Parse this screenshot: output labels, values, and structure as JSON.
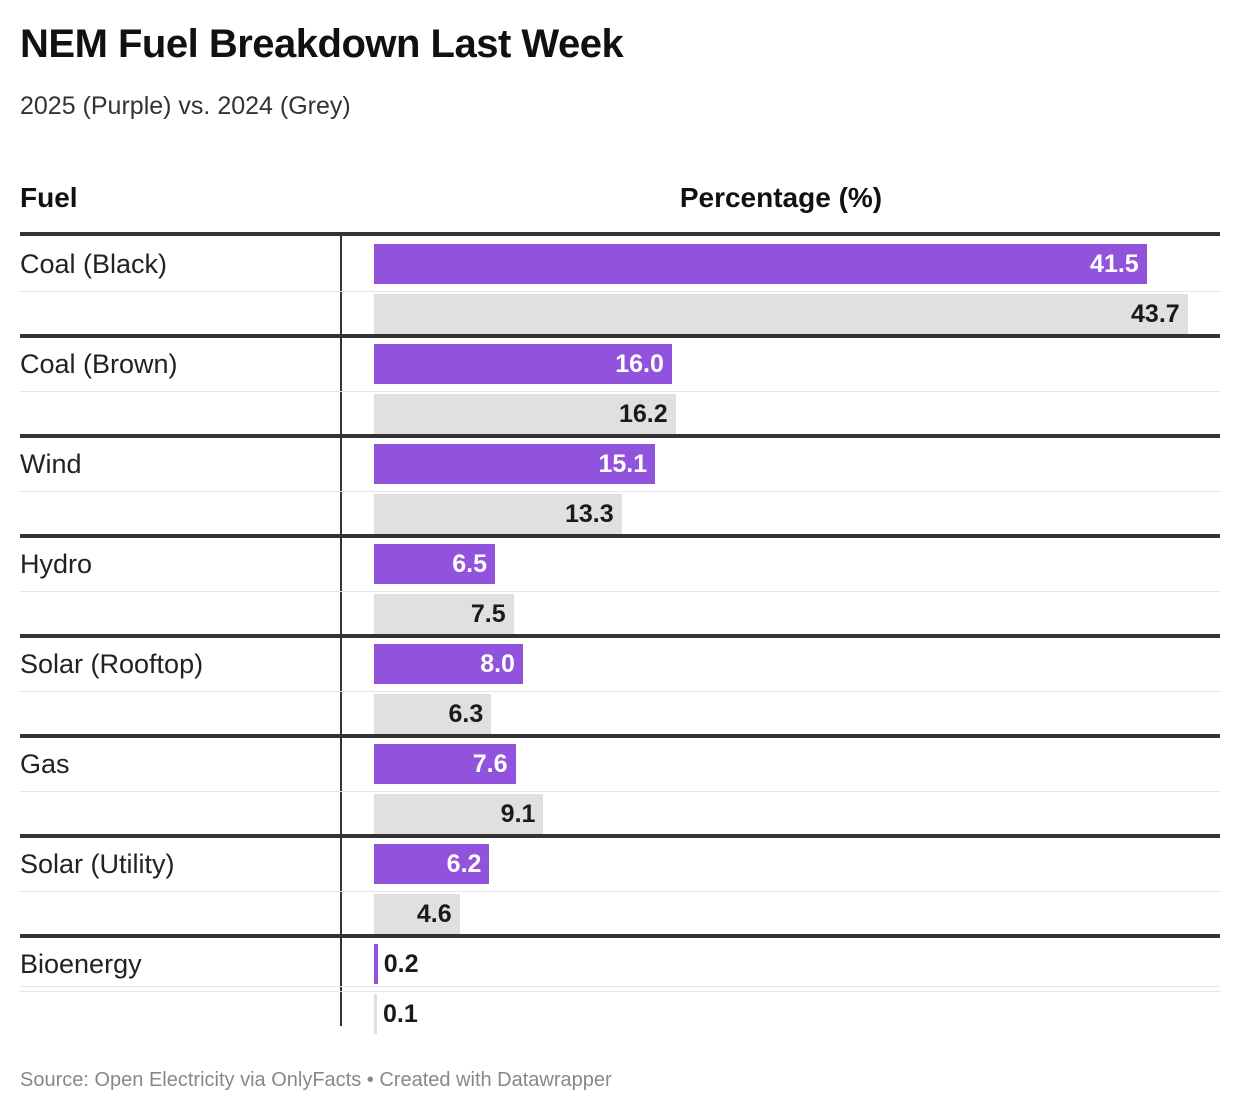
{
  "header": {
    "title": "NEM Fuel Breakdown Last Week",
    "subtitle": "2025 (Purple) vs. 2024 (Grey)",
    "col_fuel": "Fuel",
    "col_pct": "Percentage (%)"
  },
  "footer": {
    "source": "Source: Open Electricity via OnlyFacts • Created with Datawrapper"
  },
  "colors": {
    "y2025": "#9152dc",
    "y2024": "#e0e0e0",
    "label_on_purple": "#ffffff",
    "label_dark": "#1a1a1a"
  },
  "chart_data": {
    "type": "bar",
    "orientation": "horizontal",
    "xlim": [
      0,
      46
    ],
    "categories": [
      "Coal (Black)",
      "Coal (Brown)",
      "Wind",
      "Hydro",
      "Solar (Rooftop)",
      "Gas",
      "Solar (Utility)",
      "Bioenergy"
    ],
    "series": [
      {
        "name": "2025",
        "values": [
          41.5,
          16.0,
          15.1,
          6.5,
          8.0,
          7.6,
          6.2,
          0.2
        ]
      },
      {
        "name": "2024",
        "values": [
          43.7,
          16.2,
          13.3,
          7.5,
          6.3,
          9.1,
          4.6,
          0.1
        ]
      }
    ]
  }
}
